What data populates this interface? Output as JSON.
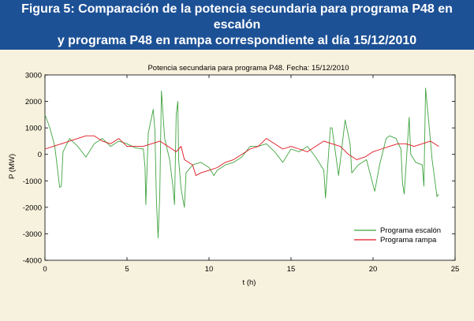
{
  "figure": {
    "caption_line1": "Figura 5: Comparación de la potencia secundaria para programa P48 en escalón",
    "caption_line2": "y programa P48 en rampa correspondiente al día 15/12/2010"
  },
  "chart_data": {
    "type": "line",
    "title": "Potencia secundaria para programa P48. Fecha: 15/12/2010",
    "xlabel": "t (h)",
    "ylabel": "P (MW)",
    "xlim": [
      0,
      25
    ],
    "ylim": [
      -4000,
      3000
    ],
    "xticks": [
      "0",
      "5",
      "10",
      "15",
      "20",
      "25"
    ],
    "yticks": [
      "3000",
      "2000",
      "1000",
      "0",
      "-1000",
      "-2000",
      "-3000",
      "-4000"
    ],
    "legend_position": "bottom-right",
    "grid": false,
    "series": [
      {
        "name": "Programa escalón",
        "color": "#3fa33f",
        "points": [
          [
            0,
            1500
          ],
          [
            0.3,
            1000
          ],
          [
            0.6,
            300
          ],
          [
            0.9,
            -1250
          ],
          [
            1.0,
            -1200
          ],
          [
            1.1,
            100
          ],
          [
            1.5,
            600
          ],
          [
            2.0,
            300
          ],
          [
            2.5,
            -100
          ],
          [
            3.0,
            400
          ],
          [
            3.5,
            600
          ],
          [
            4.0,
            300
          ],
          [
            4.5,
            500
          ],
          [
            5.0,
            400
          ],
          [
            5.5,
            250
          ],
          [
            6.0,
            200
          ],
          [
            6.1,
            -500
          ],
          [
            6.15,
            -1900
          ],
          [
            6.3,
            800
          ],
          [
            6.6,
            1700
          ],
          [
            6.7,
            900
          ],
          [
            6.8,
            -1800
          ],
          [
            6.9,
            -3150
          ],
          [
            7.0,
            -1500
          ],
          [
            7.1,
            2400
          ],
          [
            7.3,
            600
          ],
          [
            7.6,
            -200
          ],
          [
            7.8,
            -1200
          ],
          [
            7.9,
            -1900
          ],
          [
            8.0,
            1500
          ],
          [
            8.1,
            2000
          ],
          [
            8.15,
            -200
          ],
          [
            8.3,
            -1300
          ],
          [
            8.5,
            -2000
          ],
          [
            8.6,
            -700
          ],
          [
            9.0,
            -400
          ],
          [
            9.5,
            -300
          ],
          [
            10.0,
            -500
          ],
          [
            10.3,
            -800
          ],
          [
            10.5,
            -600
          ],
          [
            11.0,
            -400
          ],
          [
            11.5,
            -300
          ],
          [
            12.0,
            -100
          ],
          [
            12.5,
            300
          ],
          [
            13.0,
            300
          ],
          [
            13.5,
            400
          ],
          [
            14.0,
            100
          ],
          [
            14.5,
            -300
          ],
          [
            15.0,
            200
          ],
          [
            15.5,
            100
          ],
          [
            16.0,
            300
          ],
          [
            16.5,
            -100
          ],
          [
            17.0,
            -600
          ],
          [
            17.1,
            -1650
          ],
          [
            17.4,
            1000
          ],
          [
            17.5,
            1000
          ],
          [
            17.7,
            100
          ],
          [
            17.9,
            -800
          ],
          [
            18.3,
            1300
          ],
          [
            18.6,
            400
          ],
          [
            18.7,
            -700
          ],
          [
            19.1,
            -400
          ],
          [
            19.6,
            -200
          ],
          [
            20.1,
            -1400
          ],
          [
            20.4,
            -400
          ],
          [
            20.8,
            600
          ],
          [
            21.0,
            700
          ],
          [
            21.4,
            600
          ],
          [
            21.7,
            200
          ],
          [
            21.8,
            -1100
          ],
          [
            21.9,
            -1500
          ],
          [
            22.2,
            1400
          ],
          [
            22.3,
            0
          ],
          [
            22.6,
            -300
          ],
          [
            23.0,
            -400
          ],
          [
            23.1,
            -1200
          ],
          [
            23.2,
            2500
          ],
          [
            23.4,
            1200
          ],
          [
            23.6,
            -200
          ],
          [
            23.9,
            -1600
          ],
          [
            24.0,
            -1500
          ]
        ]
      },
      {
        "name": "Programa rampa",
        "color": "#e0141e",
        "points": [
          [
            0,
            200
          ],
          [
            0.5,
            300
          ],
          [
            1.0,
            400
          ],
          [
            1.5,
            500
          ],
          [
            2.0,
            600
          ],
          [
            2.5,
            700
          ],
          [
            3.0,
            700
          ],
          [
            3.5,
            500
          ],
          [
            4.0,
            400
          ],
          [
            4.5,
            600
          ],
          [
            5.0,
            300
          ],
          [
            5.5,
            300
          ],
          [
            6.0,
            300
          ],
          [
            6.5,
            400
          ],
          [
            7.0,
            500
          ],
          [
            7.5,
            300
          ],
          [
            8.0,
            100
          ],
          [
            8.3,
            300
          ],
          [
            8.5,
            -200
          ],
          [
            9.0,
            -400
          ],
          [
            9.2,
            -800
          ],
          [
            9.5,
            -700
          ],
          [
            10.0,
            -600
          ],
          [
            10.5,
            -500
          ],
          [
            11.0,
            -300
          ],
          [
            11.5,
            -200
          ],
          [
            12.0,
            0
          ],
          [
            12.5,
            200
          ],
          [
            13.0,
            300
          ],
          [
            13.5,
            600
          ],
          [
            14.0,
            400
          ],
          [
            14.5,
            200
          ],
          [
            15.0,
            300
          ],
          [
            15.5,
            200
          ],
          [
            16.0,
            100
          ],
          [
            16.5,
            300
          ],
          [
            17.0,
            500
          ],
          [
            17.5,
            400
          ],
          [
            18.0,
            300
          ],
          [
            18.5,
            0
          ],
          [
            19.0,
            -200
          ],
          [
            19.5,
            -100
          ],
          [
            20.0,
            100
          ],
          [
            20.5,
            200
          ],
          [
            21.0,
            300
          ],
          [
            21.5,
            400
          ],
          [
            22.0,
            400
          ],
          [
            22.5,
            300
          ],
          [
            23.0,
            400
          ],
          [
            23.5,
            500
          ],
          [
            24.0,
            300
          ]
        ]
      }
    ]
  }
}
